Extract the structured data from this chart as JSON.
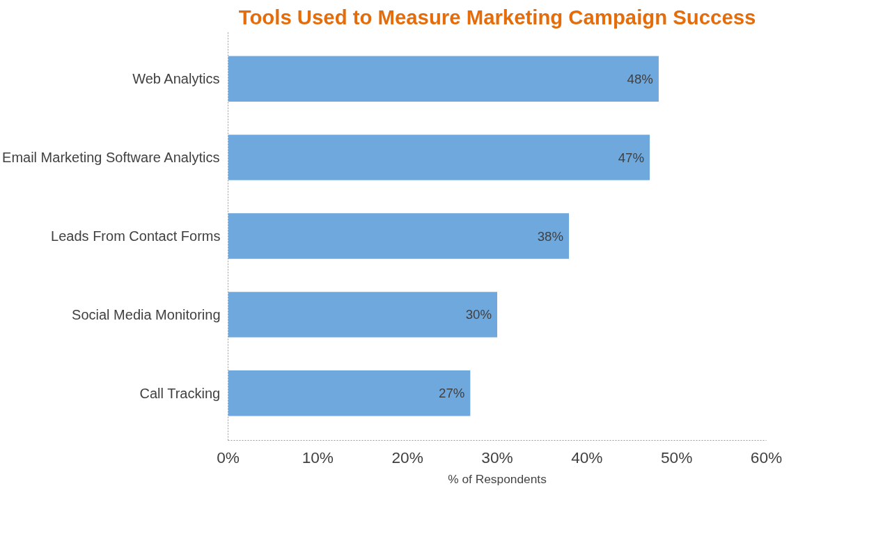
{
  "chart_data": {
    "type": "bar",
    "orientation": "horizontal",
    "title": "Tools Used to Measure Marketing Campaign Success",
    "xlabel": "% of Respondents",
    "categories": [
      "Web Analytics",
      "Email Marketing Software Analytics",
      "Leads From Contact Forms",
      "Social Media Monitoring",
      "Call Tracking"
    ],
    "values": [
      48,
      47,
      38,
      30,
      27
    ],
    "value_labels": [
      "48%",
      "47%",
      "38%",
      "30%",
      "27%"
    ],
    "color": "#6fa8dc",
    "xlim": [
      0,
      60
    ],
    "xticks": [
      {
        "value": 0,
        "label": "0%"
      },
      {
        "value": 10,
        "label": "10%"
      },
      {
        "value": 20,
        "label": "20%"
      },
      {
        "value": 30,
        "label": "30%"
      },
      {
        "value": 40,
        "label": "40%"
      },
      {
        "value": 50,
        "label": "50%"
      },
      {
        "value": 60,
        "label": "60%"
      }
    ],
    "grid": false
  }
}
